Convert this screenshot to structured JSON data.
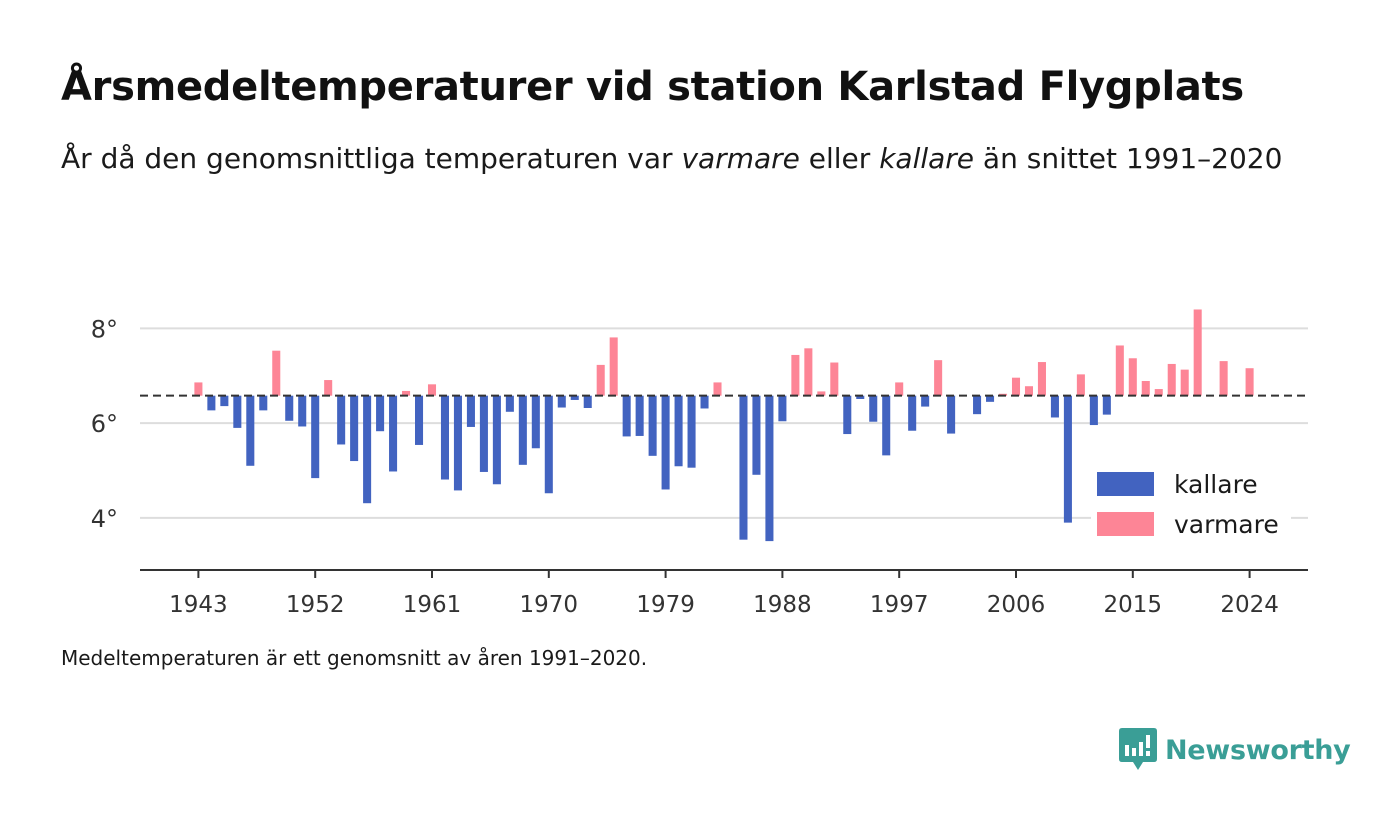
{
  "header": {
    "title": "Årsmedeltemperaturer vid station Karlstad Flygplats",
    "subtitle_prefix": "År då den genomsnittliga temperaturen var ",
    "subtitle_warm": "varmare",
    "subtitle_middle": " eller ",
    "subtitle_cold": "kallare",
    "subtitle_suffix": " än snittet 1991–2020"
  },
  "footer": {
    "note": "Medeltemperaturen är ett genomsnitt av åren 1991–2020.",
    "brand": "Newsworthy"
  },
  "colors": {
    "cold": "#4263c0",
    "warm": "#fd8596",
    "brand": "#3a9e96",
    "grid": "#dddddd",
    "axis": "#333333"
  },
  "chart_data": {
    "type": "bar",
    "baseline": 6.58,
    "baseline_style": "dashed",
    "ylim": [
      2.9,
      8.6
    ],
    "yticks": [
      4,
      6,
      8
    ],
    "ytick_labels": [
      "4°",
      "6°",
      "8°"
    ],
    "xlim": [
      1938.5,
      2028.5
    ],
    "xticks": [
      1943,
      1952,
      1961,
      1970,
      1979,
      1988,
      1997,
      2006,
      2015,
      2024
    ],
    "xtick_labels": [
      "1943",
      "1952",
      "1961",
      "1970",
      "1979",
      "1988",
      "1997",
      "2006",
      "2015",
      "2024"
    ],
    "grid": true,
    "legend_position": "bottom-right",
    "legend": [
      {
        "key": "cold",
        "label": "kallare"
      },
      {
        "key": "warm",
        "label": "varmare"
      }
    ],
    "x": [
      1943,
      1944,
      1945,
      1946,
      1947,
      1948,
      1949,
      1950,
      1951,
      1952,
      1953,
      1954,
      1955,
      1956,
      1957,
      1958,
      1959,
      1960,
      1961,
      1962,
      1963,
      1964,
      1965,
      1966,
      1967,
      1968,
      1969,
      1970,
      1971,
      1972,
      1973,
      1974,
      1975,
      1976,
      1977,
      1978,
      1979,
      1980,
      1981,
      1982,
      1983,
      1984,
      1985,
      1986,
      1987,
      1988,
      1989,
      1990,
      1991,
      1992,
      1993,
      1994,
      1995,
      1996,
      1997,
      1998,
      1999,
      2000,
      2001,
      2002,
      2003,
      2004,
      2005,
      2006,
      2007,
      2008,
      2009,
      2010,
      2011,
      2012,
      2013,
      2014,
      2015,
      2016,
      2017,
      2018,
      2019,
      2020,
      2021,
      2022,
      2023,
      2024
    ],
    "values": [
      6.86,
      6.27,
      6.36,
      5.9,
      5.1,
      6.27,
      7.53,
      6.05,
      5.93,
      4.84,
      6.91,
      5.55,
      5.2,
      4.31,
      5.83,
      4.98,
      6.68,
      5.54,
      6.82,
      4.81,
      4.58,
      5.92,
      4.97,
      4.71,
      6.24,
      5.12,
      5.47,
      4.52,
      6.33,
      6.49,
      6.32,
      7.23,
      7.81,
      5.72,
      5.73,
      5.31,
      4.6,
      5.09,
      5.06,
      6.31,
      6.86,
      6.58,
      3.54,
      4.91,
      3.51,
      6.04,
      7.44,
      7.58,
      6.67,
      7.28,
      5.77,
      6.51,
      6.03,
      5.32,
      6.86,
      5.84,
      6.35,
      7.33,
      5.78,
      6.58,
      6.19,
      6.45,
      6.62,
      6.96,
      6.78,
      7.29,
      6.12,
      3.9,
      7.03,
      5.96,
      6.18,
      7.64,
      7.37,
      6.89,
      6.72,
      7.25,
      7.13,
      8.4,
      6.58,
      7.31,
      6.58,
      7.16
    ]
  }
}
